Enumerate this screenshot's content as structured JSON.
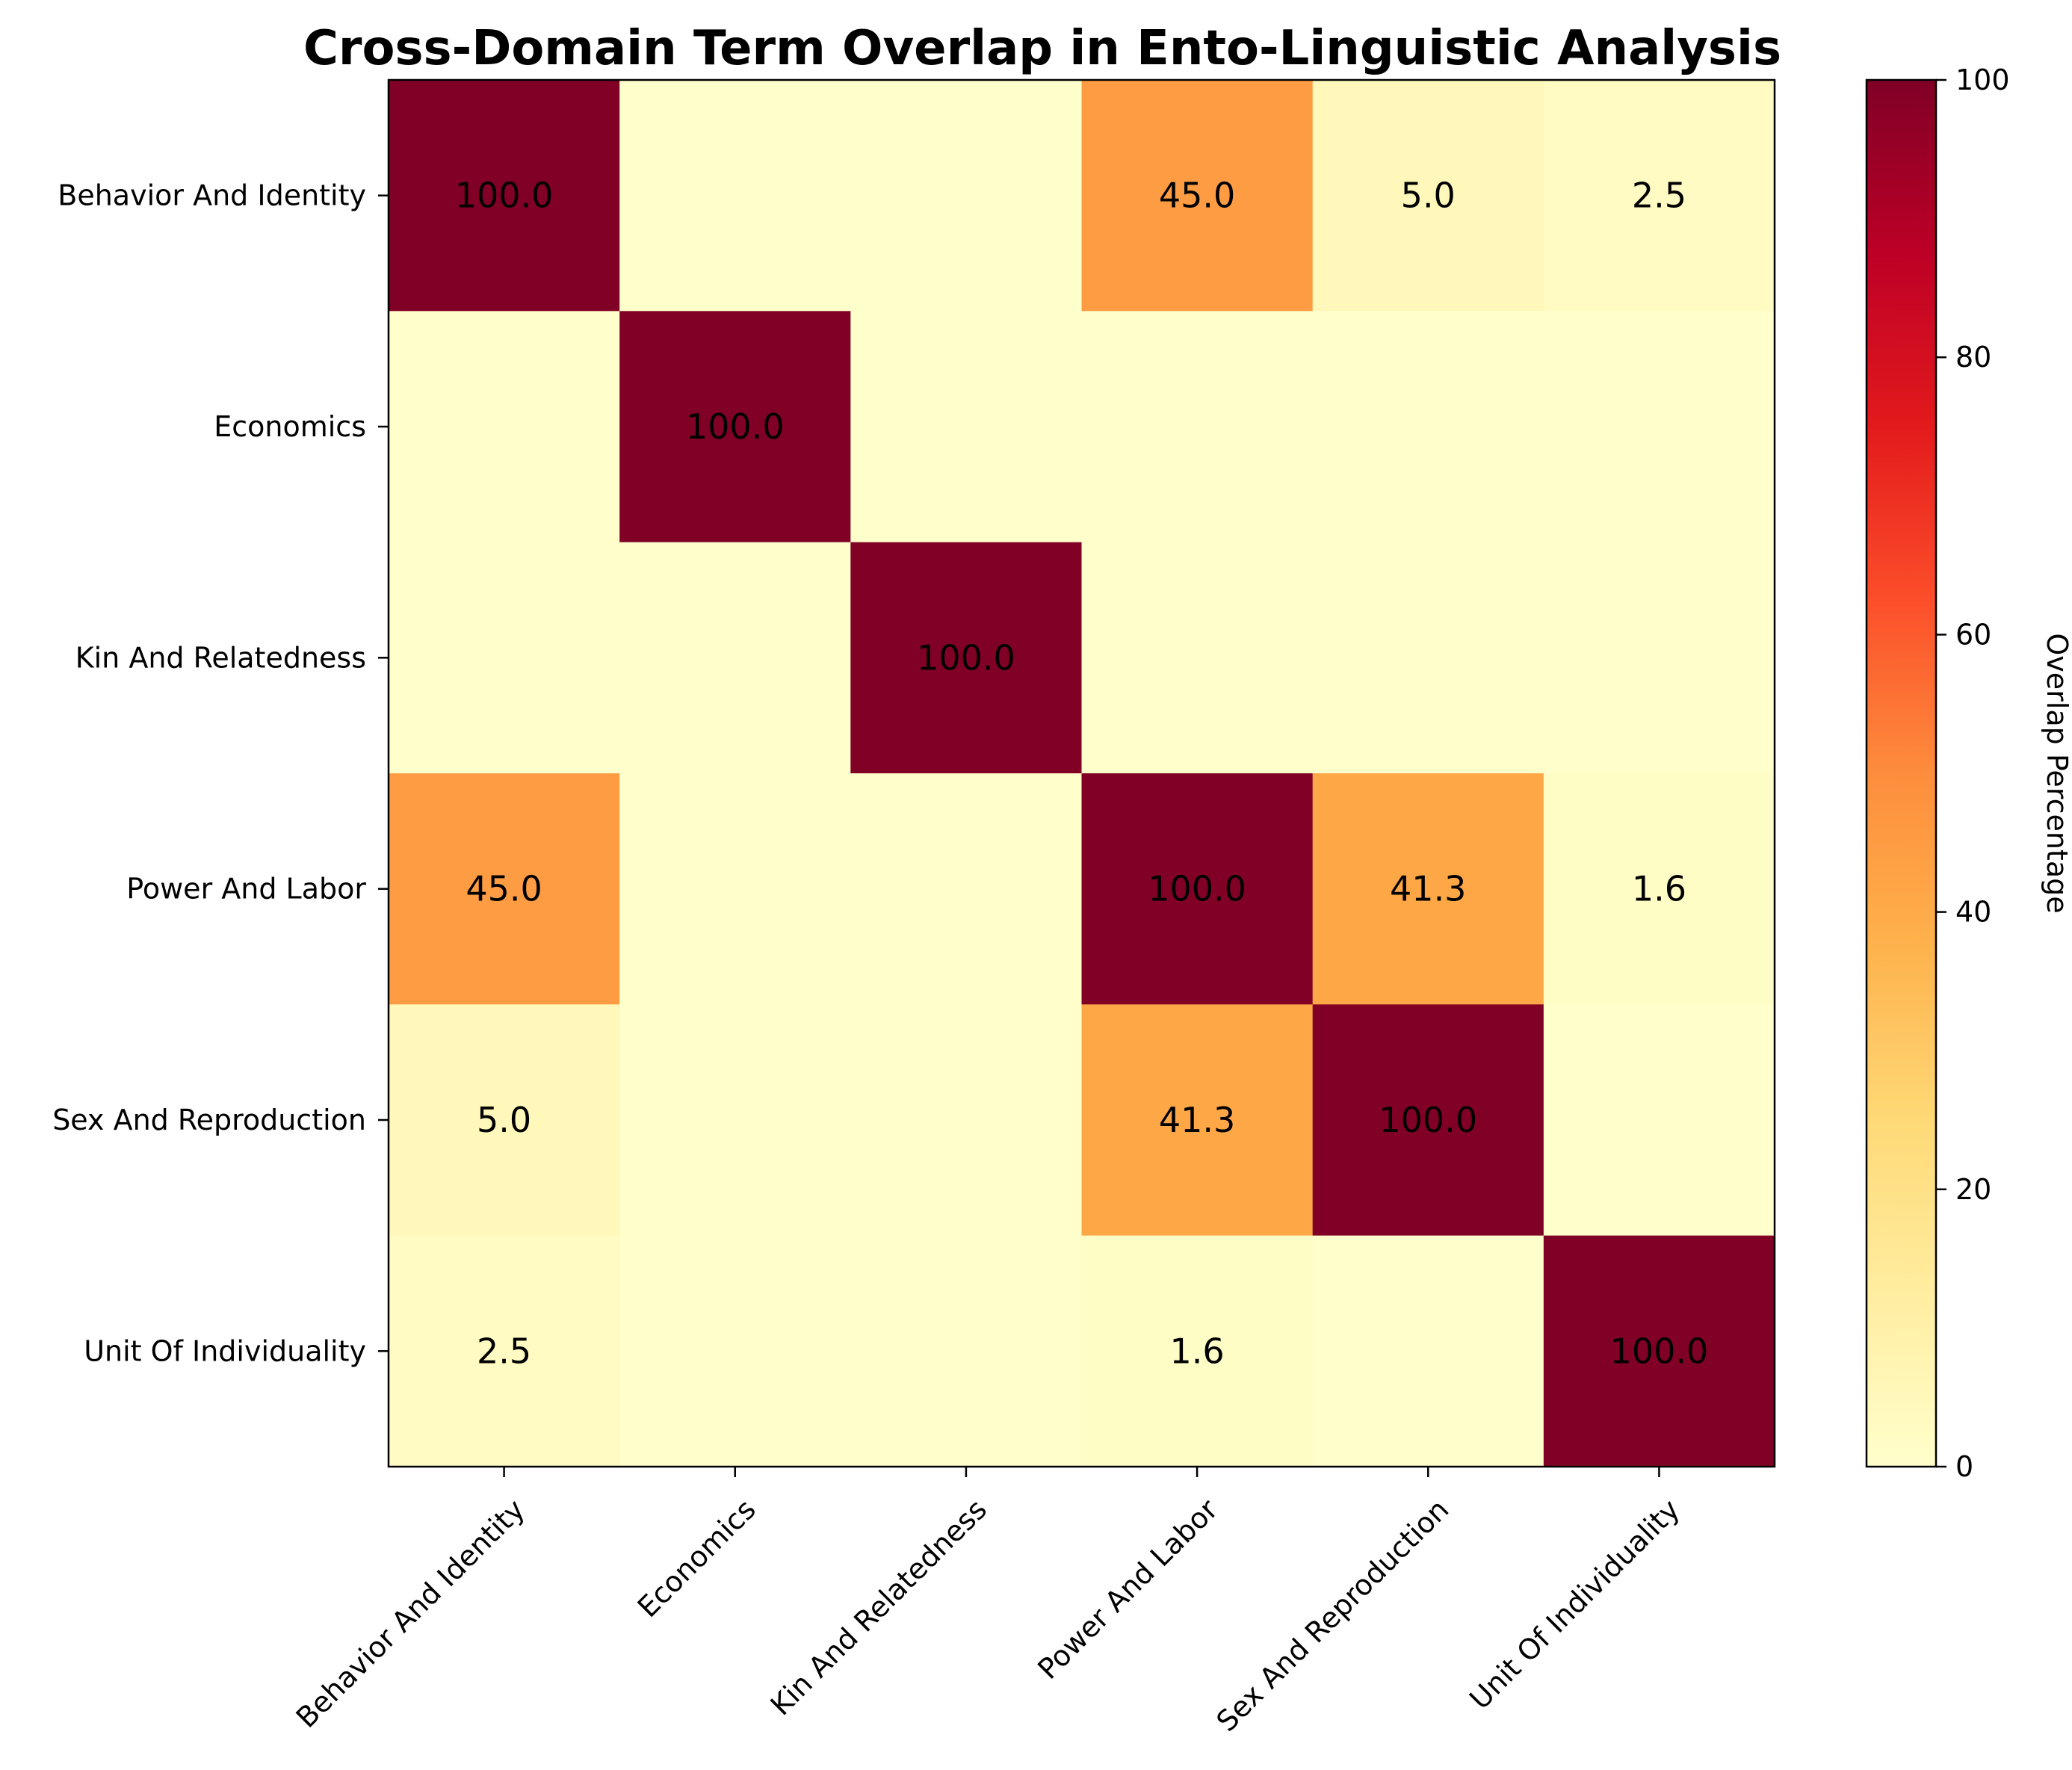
{
  "chart_data": {
    "type": "heatmap",
    "title": "Cross-Domain Term Overlap in Ento-Linguistic Analysis",
    "x_labels": [
      "Behavior And Identity",
      "Economics",
      "Kin And Relatedness",
      "Power And Labor",
      "Sex And Reproduction",
      "Unit Of Individuality"
    ],
    "y_labels": [
      "Behavior And Identity",
      "Economics",
      "Kin And Relatedness",
      "Power And Labor",
      "Sex And Reproduction",
      "Unit Of Individuality"
    ],
    "values": [
      [
        100.0,
        0.0,
        0.0,
        45.0,
        5.0,
        2.5
      ],
      [
        0.0,
        100.0,
        0.0,
        0.0,
        0.0,
        0.0
      ],
      [
        0.0,
        0.0,
        100.0,
        0.0,
        0.0,
        0.0
      ],
      [
        45.0,
        0.0,
        0.0,
        100.0,
        41.3,
        1.6
      ],
      [
        5.0,
        0.0,
        0.0,
        41.3,
        100.0,
        0.0
      ],
      [
        2.5,
        0.0,
        0.0,
        1.6,
        0.0,
        100.0
      ]
    ],
    "annotations_shown_for_nonzero_only": true,
    "colormap": "YlOrRd",
    "vmin": 0,
    "vmax": 100,
    "colorbar": {
      "label": "Overlap Percentage",
      "ticks": [
        "0",
        "20",
        "40",
        "60",
        "80",
        "100"
      ]
    },
    "grid": false,
    "x_tick_rotation": "45 degrees"
  }
}
